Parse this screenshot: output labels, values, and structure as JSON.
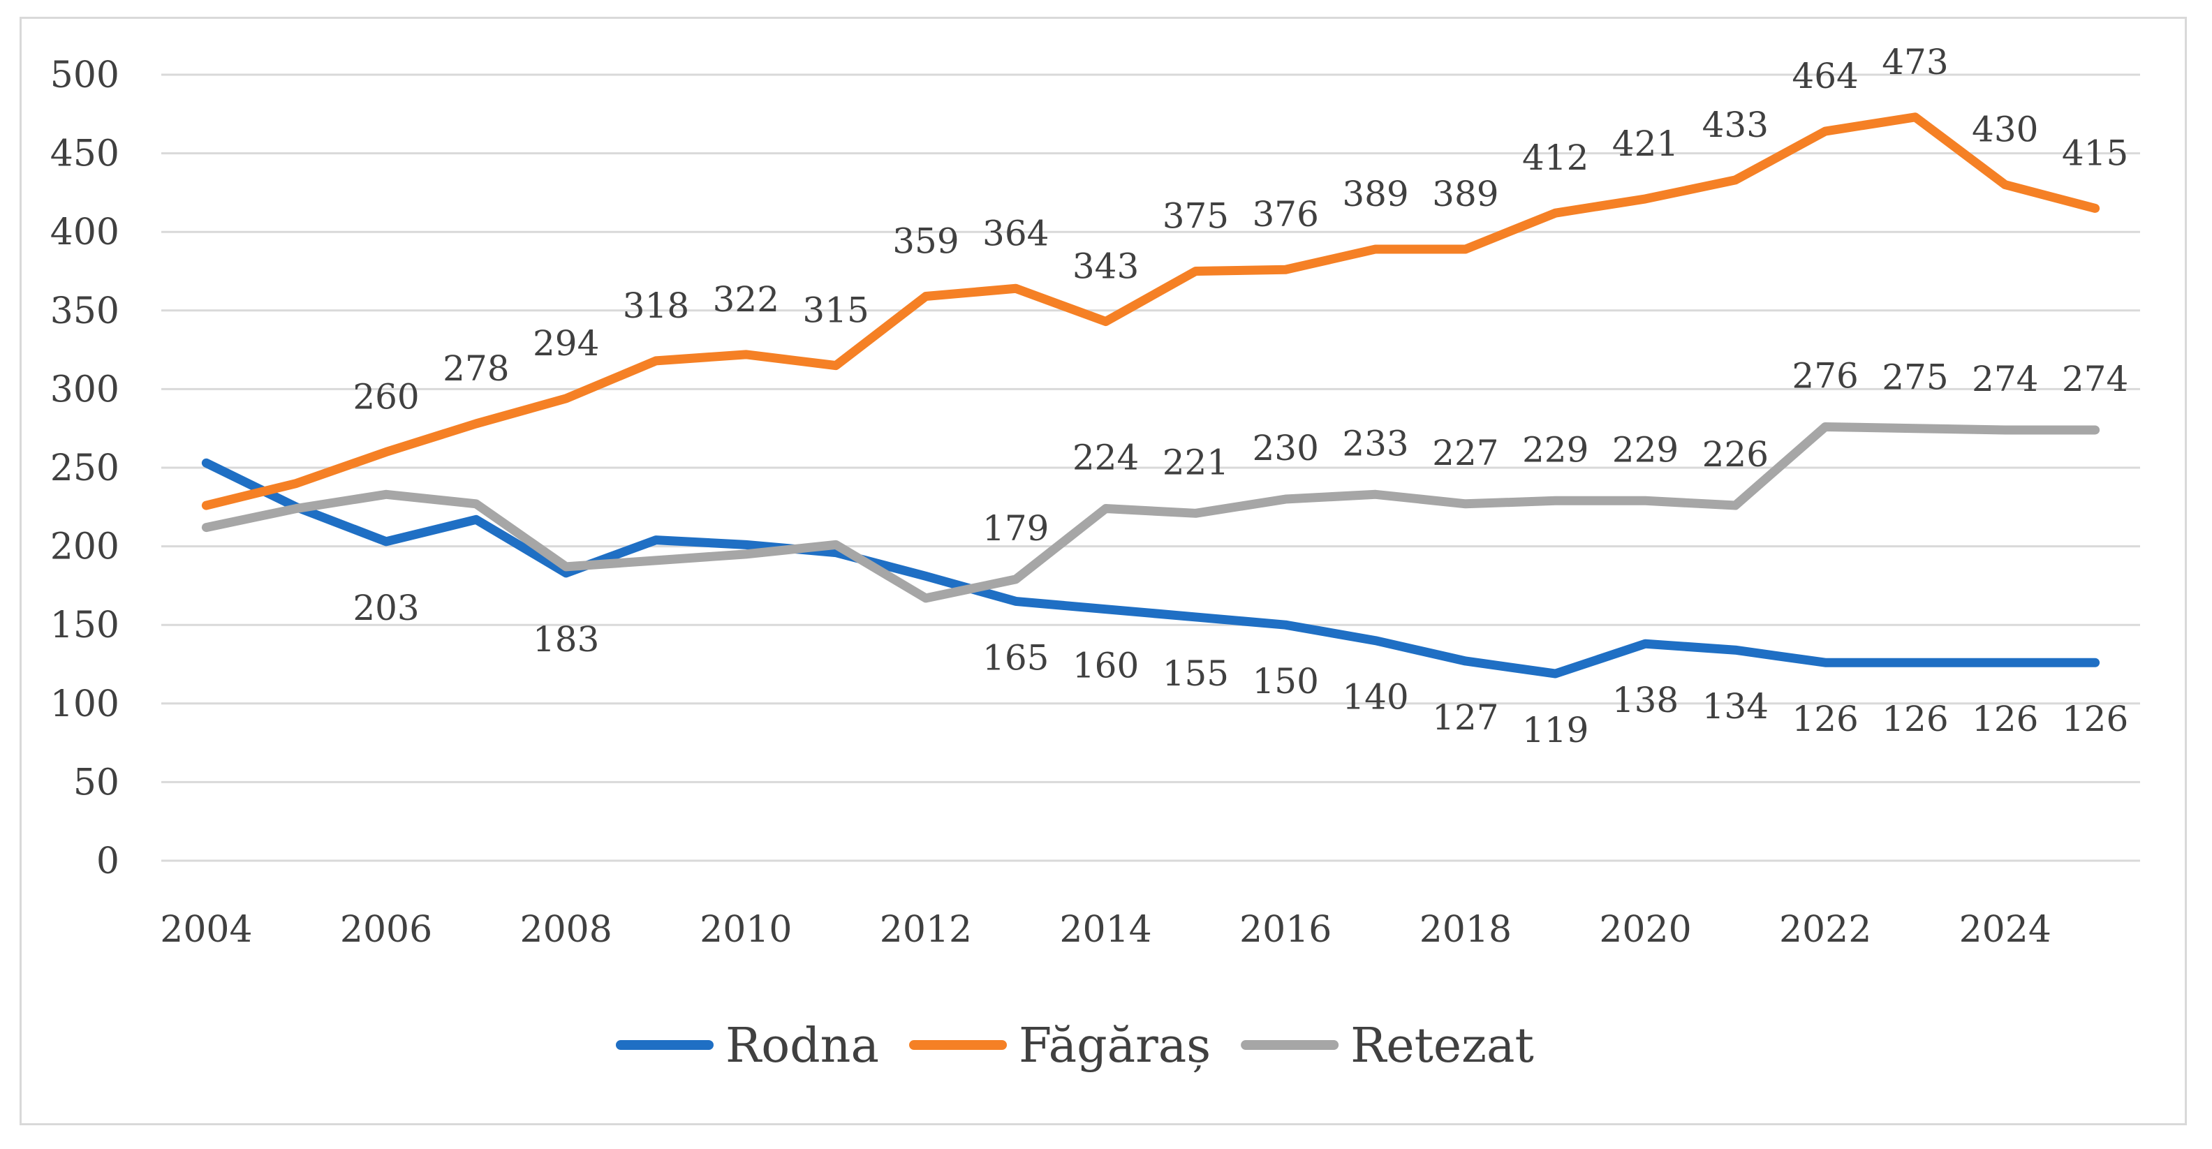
{
  "chart_data": {
    "type": "line",
    "title": "",
    "xlabel": "",
    "ylabel": "",
    "x": [
      2004,
      2005,
      2006,
      2007,
      2008,
      2009,
      2010,
      2011,
      2012,
      2013,
      2014,
      2015,
      2016,
      2017,
      2018,
      2019,
      2020,
      2021,
      2022,
      2023,
      2024,
      2025
    ],
    "x_ticks": [
      "2004",
      "2006",
      "2008",
      "2010",
      "2012",
      "2014",
      "2016",
      "2018",
      "2020",
      "2022",
      "2024"
    ],
    "y_ticks": [
      "0",
      "50",
      "100",
      "150",
      "200",
      "250",
      "300",
      "350",
      "400",
      "450",
      "500"
    ],
    "ylim": [
      0,
      500
    ],
    "grid": true,
    "legend_position": "bottom",
    "series": [
      {
        "name": "Rodna",
        "color": "#1f6fc4",
        "values": [
          253,
          225,
          203,
          217,
          183,
          204,
          201,
          196,
          181,
          165,
          160,
          155,
          150,
          140,
          127,
          119,
          138,
          134,
          126,
          126,
          126,
          126
        ],
        "labels": [
          null,
          null,
          "203",
          null,
          "183",
          null,
          null,
          null,
          null,
          "165",
          "160",
          "155",
          "150",
          "140",
          "127",
          "119",
          "138",
          "134",
          "126",
          "126",
          "126",
          "126"
        ]
      },
      {
        "name": "Făgăraș",
        "color": "#f58025",
        "values": [
          226,
          240,
          260,
          278,
          294,
          318,
          322,
          315,
          359,
          364,
          343,
          375,
          376,
          389,
          389,
          412,
          421,
          433,
          464,
          473,
          430,
          415
        ],
        "labels": [
          null,
          null,
          "260",
          "278",
          "294",
          "318",
          "322",
          "315",
          "359",
          "364",
          "343",
          "375",
          "376",
          "389",
          "389",
          "412",
          "421",
          "433",
          "464",
          "473",
          "430",
          "415"
        ]
      },
      {
        "name": "Retezat",
        "color": "#a6a6a6",
        "values": [
          212,
          224,
          233,
          227,
          187,
          191,
          195,
          201,
          167,
          179,
          224,
          221,
          230,
          233,
          227,
          229,
          229,
          226,
          276,
          275,
          274,
          274
        ],
        "labels": [
          null,
          null,
          null,
          null,
          null,
          null,
          null,
          null,
          null,
          "179",
          "224",
          "221",
          "230",
          "233",
          "227",
          "229",
          "229",
          "226",
          "276",
          "275",
          "274",
          "274"
        ]
      }
    ]
  }
}
